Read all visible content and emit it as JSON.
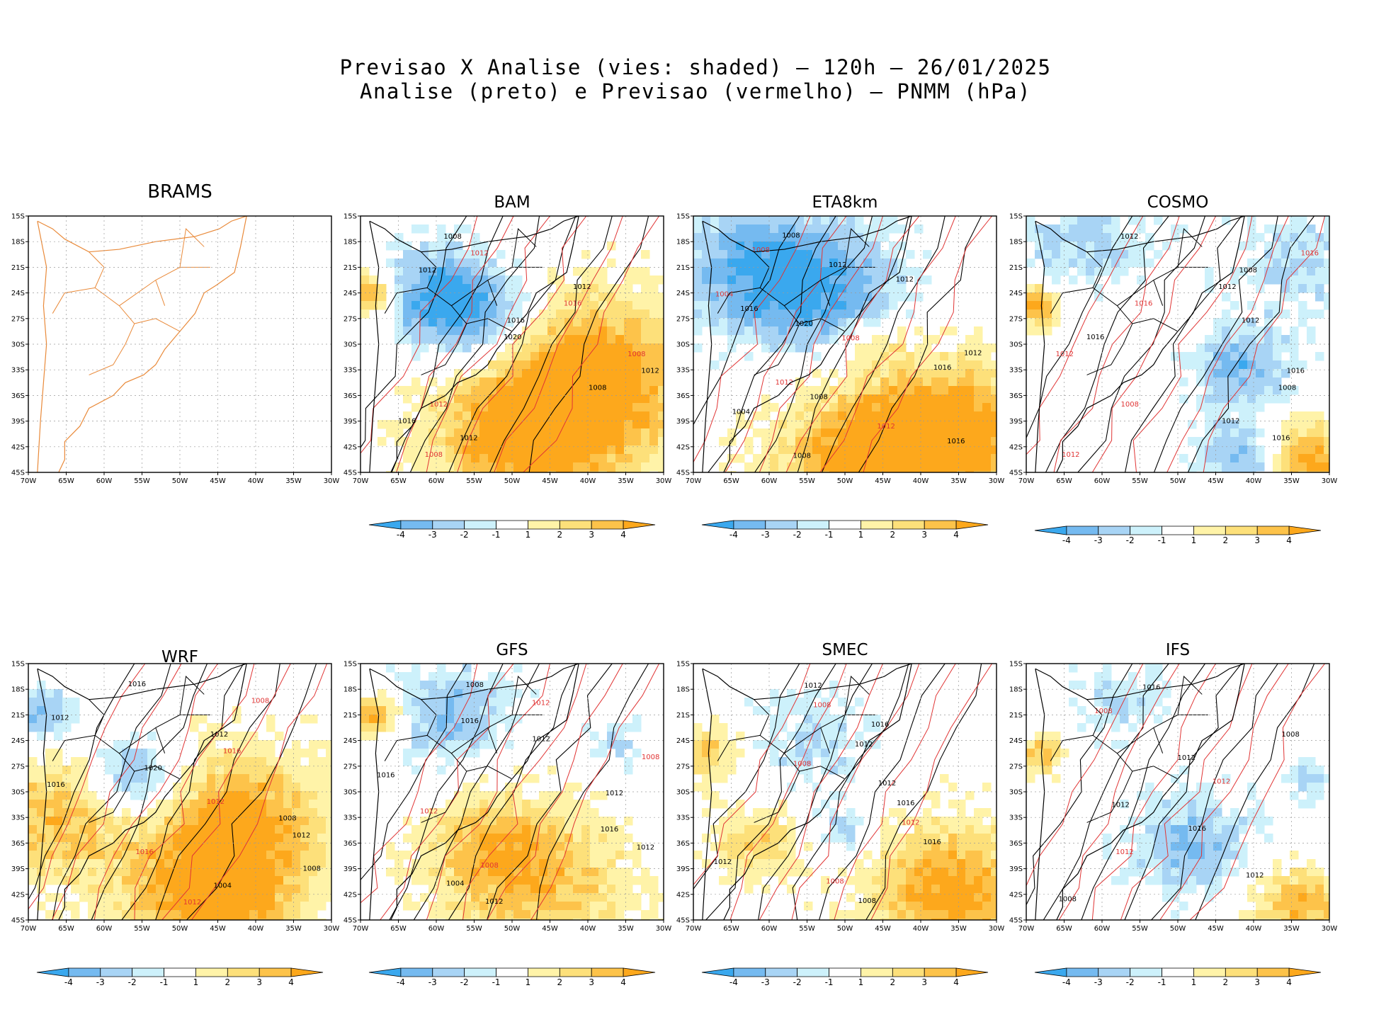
{
  "title_line1": "Previsao X Analise (vies: shaded) – 120h – 26/01/2025",
  "title_line2": "Analise (preto) e Previsao (vermelho) – PNMM (hPa)",
  "chart_data": {
    "type": "heatmap",
    "description_variable": "PNMM bias (forecast minus analysis), hPa",
    "lat_ticks": [
      "15S",
      "18S",
      "21S",
      "24S",
      "27S",
      "30S",
      "33S",
      "36S",
      "39S",
      "42S",
      "45S"
    ],
    "lon_ticks": [
      "70W",
      "65W",
      "60W",
      "55W",
      "50W",
      "45W",
      "40W",
      "35W",
      "30W"
    ],
    "xlim_lon": [
      -70,
      -30
    ],
    "ylim_lat": [
      -45,
      -15
    ],
    "colorbar": {
      "labels": [
        "-4",
        "-3",
        "-2",
        "-1",
        "1",
        "2",
        "3",
        "4"
      ],
      "colors": [
        "#3aa8ee",
        "#75baf0",
        "#a8d4f5",
        "#cdf1fb",
        "#ffffff",
        "#fff3a8",
        "#fde07a",
        "#fdc34a",
        "#fda81c"
      ]
    },
    "contour_colors": {
      "analysis": "#000000",
      "forecast": "#e03434",
      "coast": "#e98a3a"
    },
    "panels": [
      {
        "name": "BRAMS",
        "has_data": false,
        "colorbar": false,
        "contour_labels": []
      },
      {
        "name": "BAM",
        "has_data": true,
        "colorbar": true,
        "contour_labels": [
          "1008",
          "1012",
          "1012",
          "1012",
          "1016",
          "1016",
          "1020",
          "1008",
          "1012",
          "1008",
          "1012",
          "1016",
          "1012",
          "1008"
        ]
      },
      {
        "name": "ETA8km",
        "has_data": true,
        "colorbar": true,
        "contour_labels": [
          "1008",
          "1008",
          "1012",
          "1012",
          "1004",
          "1016",
          "1020",
          "1008",
          "1012",
          "1016",
          "1012",
          "1008",
          "1004",
          "1012",
          "1016",
          "1008"
        ]
      },
      {
        "name": "COSMO",
        "has_data": true,
        "colorbar": true,
        "contour_labels": [
          "1012",
          "1016",
          "1008",
          "1012",
          "1016",
          "1012",
          "1016",
          "1012",
          "1016",
          "1008",
          "1008",
          "1012",
          "1016",
          "1012"
        ]
      },
      {
        "name": "WRF",
        "has_data": true,
        "colorbar": true,
        "contour_labels": [
          "1016",
          "1008",
          "1012",
          "1012",
          "1016",
          "1020",
          "1016",
          "1012",
          "1008",
          "1012",
          "1016",
          "1008",
          "1004",
          "1012"
        ]
      },
      {
        "name": "GFS",
        "has_data": true,
        "colorbar": true,
        "contour_labels": [
          "1008",
          "1012",
          "1016",
          "1012",
          "1008",
          "1016",
          "1012",
          "1012",
          "1016",
          "1012",
          "1008",
          "1004",
          "1012"
        ]
      },
      {
        "name": "SMEC",
        "has_data": true,
        "colorbar": true,
        "contour_labels": [
          "1012",
          "1008",
          "1016",
          "1012",
          "1008",
          "1012",
          "1016",
          "1012",
          "1016",
          "1012",
          "1008",
          "1008"
        ]
      },
      {
        "name": "IFS",
        "has_data": true,
        "colorbar": true,
        "contour_labels": [
          "1016",
          "1008",
          "1008",
          "1012",
          "1012",
          "1012",
          "1016",
          "1012",
          "1012",
          "1008"
        ]
      }
    ]
  }
}
